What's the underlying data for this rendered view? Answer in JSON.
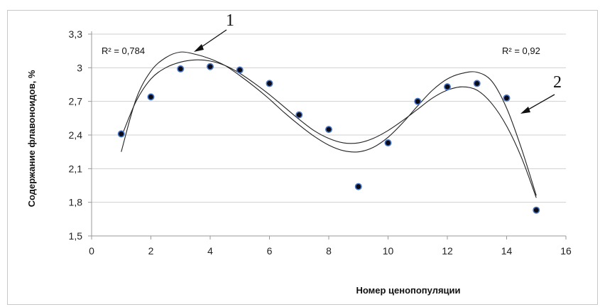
{
  "chart_data": {
    "type": "scatter",
    "xlabel": "Номер ценопопуляции",
    "ylabel": "Содержание флавоноидов, %",
    "xlim": [
      0,
      16
    ],
    "ylim": [
      1.5,
      3.3
    ],
    "xticks": [
      0,
      2,
      4,
      6,
      8,
      10,
      12,
      14,
      16
    ],
    "yticks": [
      "1,5",
      "1,8",
      "2,1",
      "2,4",
      "2,7",
      "3",
      "3,3"
    ],
    "ytick_values": [
      1.5,
      1.8,
      2.1,
      2.4,
      2.7,
      3.0,
      3.3
    ],
    "grid": "horizontal",
    "points": {
      "x": [
        1,
        2,
        3,
        4,
        5,
        6,
        7,
        8,
        9,
        10,
        11,
        12,
        13,
        14,
        15
      ],
      "y": [
        2.41,
        2.74,
        2.99,
        3.01,
        2.98,
        2.86,
        2.58,
        2.45,
        1.94,
        2.33,
        2.7,
        2.83,
        2.86,
        2.73,
        1.73
      ]
    },
    "trendlines": [
      {
        "label": "1",
        "r2_text": "R² = 0,784",
        "x": [
          1,
          1.5,
          2,
          2.5,
          3,
          3.5,
          4,
          4.5,
          5,
          5.5,
          6,
          6.5,
          7,
          7.5,
          8,
          8.5,
          9,
          9.5,
          10,
          10.5,
          11,
          11.5,
          12,
          12.5,
          13,
          13.5,
          14,
          14.5,
          15
        ],
        "y": [
          2.38,
          2.7,
          2.9,
          3.0,
          3.05,
          3.07,
          3.06,
          3.02,
          2.95,
          2.86,
          2.76,
          2.65,
          2.54,
          2.44,
          2.37,
          2.33,
          2.33,
          2.37,
          2.44,
          2.53,
          2.63,
          2.73,
          2.8,
          2.83,
          2.8,
          2.68,
          2.48,
          2.2,
          1.84
        ]
      },
      {
        "label": "2",
        "r2_text": "R² = 0,92",
        "x": [
          1,
          1.5,
          2,
          2.5,
          3,
          3.5,
          4,
          4.5,
          5,
          5.5,
          6,
          6.5,
          7,
          7.5,
          8,
          8.5,
          9,
          9.5,
          10,
          10.5,
          11,
          11.5,
          12,
          12.5,
          13,
          13.5,
          14,
          14.5,
          15
        ],
        "y": [
          2.25,
          2.72,
          2.97,
          3.09,
          3.14,
          3.12,
          3.08,
          3.02,
          2.93,
          2.83,
          2.72,
          2.6,
          2.49,
          2.39,
          2.31,
          2.26,
          2.25,
          2.29,
          2.38,
          2.51,
          2.66,
          2.8,
          2.9,
          2.95,
          2.96,
          2.88,
          2.64,
          2.28,
          1.86
        ]
      }
    ]
  }
}
